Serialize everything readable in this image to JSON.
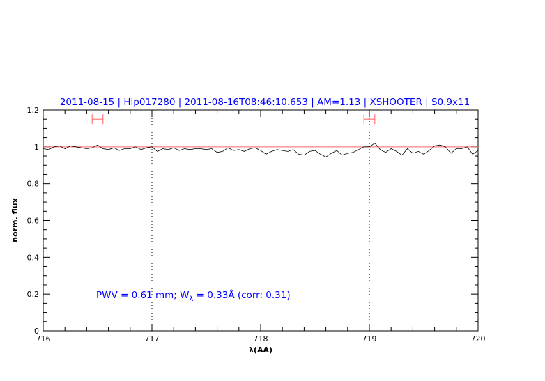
{
  "chart_data": {
    "type": "line",
    "title": "2011-08-15 | Hip017280 | 2011-08-16T08:46:10.653 | AM=1.13 | XSHOOTER | S0.9x11",
    "xlabel": "λ(AA)",
    "ylabel": "norm. flux",
    "xlim": [
      716,
      720
    ],
    "ylim": [
      0,
      1.2
    ],
    "xticks": [
      "716",
      "717",
      "718",
      "719",
      "720"
    ],
    "yticks": [
      "0",
      "0.2",
      "0.4",
      "0.6",
      "0.8",
      "1",
      "1.2"
    ],
    "annotation": {
      "prefix": "PWV = 0.61 mm; W",
      "sub": "λ",
      "suffix": " = 0.33Å (corr: 0.31)"
    },
    "reference_line": 1.0,
    "vertical_markers": [
      717,
      719
    ],
    "error_bars": [
      {
        "x": [
          716.45,
          716.55
        ],
        "y": 1.15
      },
      {
        "x": [
          718.95,
          719.05
        ],
        "y": 1.15
      }
    ],
    "x_start": 716,
    "x_step": 0.05,
    "values": [
      0.99,
      0.985,
      1.0,
      1.005,
      0.99,
      1.005,
      1.0,
      0.995,
      0.99,
      0.995,
      1.01,
      0.99,
      0.985,
      0.995,
      0.98,
      0.99,
      0.99,
      1.0,
      0.985,
      0.995,
      1.0,
      0.975,
      0.99,
      0.985,
      0.995,
      0.98,
      0.99,
      0.985,
      0.99,
      0.99,
      0.985,
      0.99,
      0.97,
      0.975,
      0.995,
      0.98,
      0.985,
      0.975,
      0.99,
      0.995,
      0.98,
      0.96,
      0.975,
      0.985,
      0.98,
      0.975,
      0.985,
      0.96,
      0.955,
      0.975,
      0.98,
      0.96,
      0.945,
      0.965,
      0.98,
      0.955,
      0.965,
      0.97,
      0.985,
      1.0,
      1.0,
      1.02,
      0.985,
      0.97,
      0.99,
      0.975,
      0.955,
      0.99,
      0.965,
      0.975,
      0.96,
      0.98,
      1.005,
      1.01,
      1.0,
      0.965,
      0.99,
      0.99,
      1.0,
      0.96,
      0.98
    ],
    "colors": {
      "title": "#0000ff",
      "line": "#000000",
      "reference": "#ff6060",
      "error_bar": "#ff6060"
    }
  }
}
